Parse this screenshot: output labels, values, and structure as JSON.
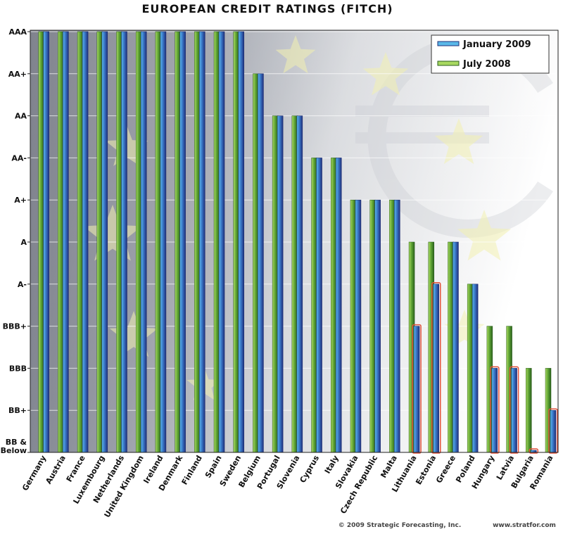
{
  "chart_data": {
    "type": "bar",
    "title": "EUROPEAN CREDIT RATINGS (FITCH)",
    "xlabel": "",
    "ylabel": "",
    "rating_levels": [
      "BB & Below",
      "BB+",
      "BBB",
      "BBB+",
      "A-",
      "A",
      "A+",
      "AA-",
      "AA",
      "AA+",
      "AAA"
    ],
    "categories": [
      "Germany",
      "Austria",
      "France",
      "Luxembourg",
      "Netherlands",
      "United Kingdom",
      "Ireland",
      "Denmark",
      "Finland",
      "Spain",
      "Sweden",
      "Belgium",
      "Portugal",
      "Slovenia",
      "Cyprus",
      "Italy",
      "Slovakia",
      "Czech Republic",
      "Malta",
      "Lithuania",
      "Estonia",
      "Greece",
      "Poland",
      "Hungary",
      "Latvia",
      "Bulgaria",
      "Romania"
    ],
    "series": [
      {
        "name": "January 2009",
        "values": [
          "AAA",
          "AAA",
          "AAA",
          "AAA",
          "AAA",
          "AAA",
          "AAA",
          "AAA",
          "AAA",
          "AAA",
          "AAA",
          "AA+",
          "AA",
          "AA",
          "AA-",
          "AA-",
          "A+",
          "A+",
          "A+",
          "BBB+",
          "A-",
          "A",
          "A-",
          "BBB",
          "BBB",
          "BB & Below",
          "BB+"
        ]
      },
      {
        "name": "July 2008",
        "values": [
          "AAA",
          "AAA",
          "AAA",
          "AAA",
          "AAA",
          "AAA",
          "AAA",
          "AAA",
          "AAA",
          "AAA",
          "AAA",
          "AA+",
          "AA",
          "AA",
          "AA-",
          "AA-",
          "A+",
          "A+",
          "A+",
          "A",
          "A",
          "A",
          "A-",
          "BBB+",
          "BBB+",
          "BBB",
          "BBB"
        ]
      }
    ],
    "downgraded": [
      "Lithuania",
      "Estonia",
      "Hungary",
      "Latvia",
      "Bulgaria",
      "Romania"
    ],
    "legend_position": "top-right",
    "grid": true,
    "colors": {
      "january_2009": "#2f4fa8",
      "january_2009_highlight": "#5ab8e8",
      "july_2008": "#3f8a2a",
      "july_2008_highlight": "#a8d860",
      "downgrade_outline": "#e0503a"
    }
  },
  "footer": {
    "copyright": "© 2009 Strategic Forecasting, Inc.",
    "website": "www.stratfor.com"
  }
}
